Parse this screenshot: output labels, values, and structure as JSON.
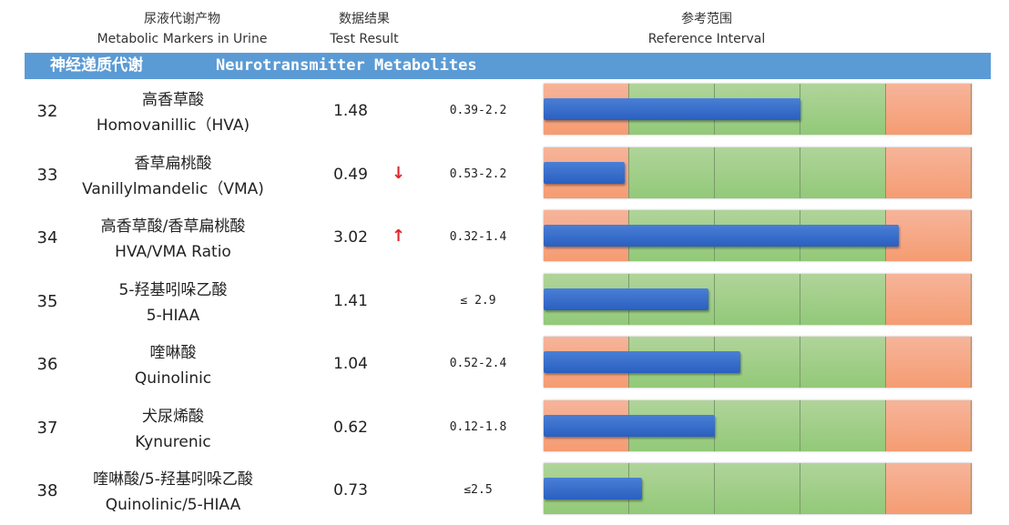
{
  "header": {
    "col1_cn": "尿液代谢产物",
    "col1_en": "Metabolic Markers in Urine",
    "col2_cn": "数据结果",
    "col2_en": "Test Result",
    "col3_cn": "参考范围",
    "col3_en": "Reference Interval"
  },
  "section": {
    "cn": "神经递质代谢",
    "en": "Neurotransmitter Metabolites"
  },
  "colors": {
    "band": "#5b9bd5",
    "low_high_zone": "#f5a07a",
    "normal_zone": "#9fcd85",
    "bar": "#3369cb",
    "arrow": "#e0262b"
  },
  "rows": [
    {
      "num": "32",
      "cn": "高香草酸",
      "en": "Homovanillic（HVA)",
      "result": "1.48",
      "flag": "",
      "ref": "0.39-2.2",
      "fill": 0.6,
      "first_zone": "o"
    },
    {
      "num": "33",
      "cn": "香草扁桃酸",
      "en": "Vanillylmandelic（VMA)",
      "result": "0.49",
      "flag": "↓",
      "ref": "0.53-2.2",
      "fill": 0.19,
      "first_zone": "o"
    },
    {
      "num": "34",
      "cn": "高香草酸/香草扁桃酸",
      "en": "HVA/VMA Ratio",
      "result": "3.02",
      "flag": "↑",
      "ref": "0.32-1.4",
      "fill": 0.83,
      "first_zone": "o"
    },
    {
      "num": "35",
      "cn": "5-羟基吲哚乙酸",
      "en": "5-HIAA",
      "result": "1.41",
      "flag": "",
      "ref": "≤ 2.9",
      "fill": 0.385,
      "first_zone": "g"
    },
    {
      "num": "36",
      "cn": "喹啉酸",
      "en": "Quinolinic",
      "result": "1.04",
      "flag": "",
      "ref": "0.52-2.4",
      "fill": 0.46,
      "first_zone": "o"
    },
    {
      "num": "37",
      "cn": "犬尿烯酸",
      "en": "Kynurenic",
      "result": "0.62",
      "flag": "",
      "ref": "0.12-1.8",
      "fill": 0.4,
      "first_zone": "o"
    },
    {
      "num": "38",
      "cn": "喹啉酸/5-羟基吲哚乙酸",
      "en": "Quinolinic/5-HIAA",
      "result": "0.73",
      "flag": "",
      "ref": "≤2.5",
      "fill": 0.23,
      "first_zone": "g"
    }
  ]
}
